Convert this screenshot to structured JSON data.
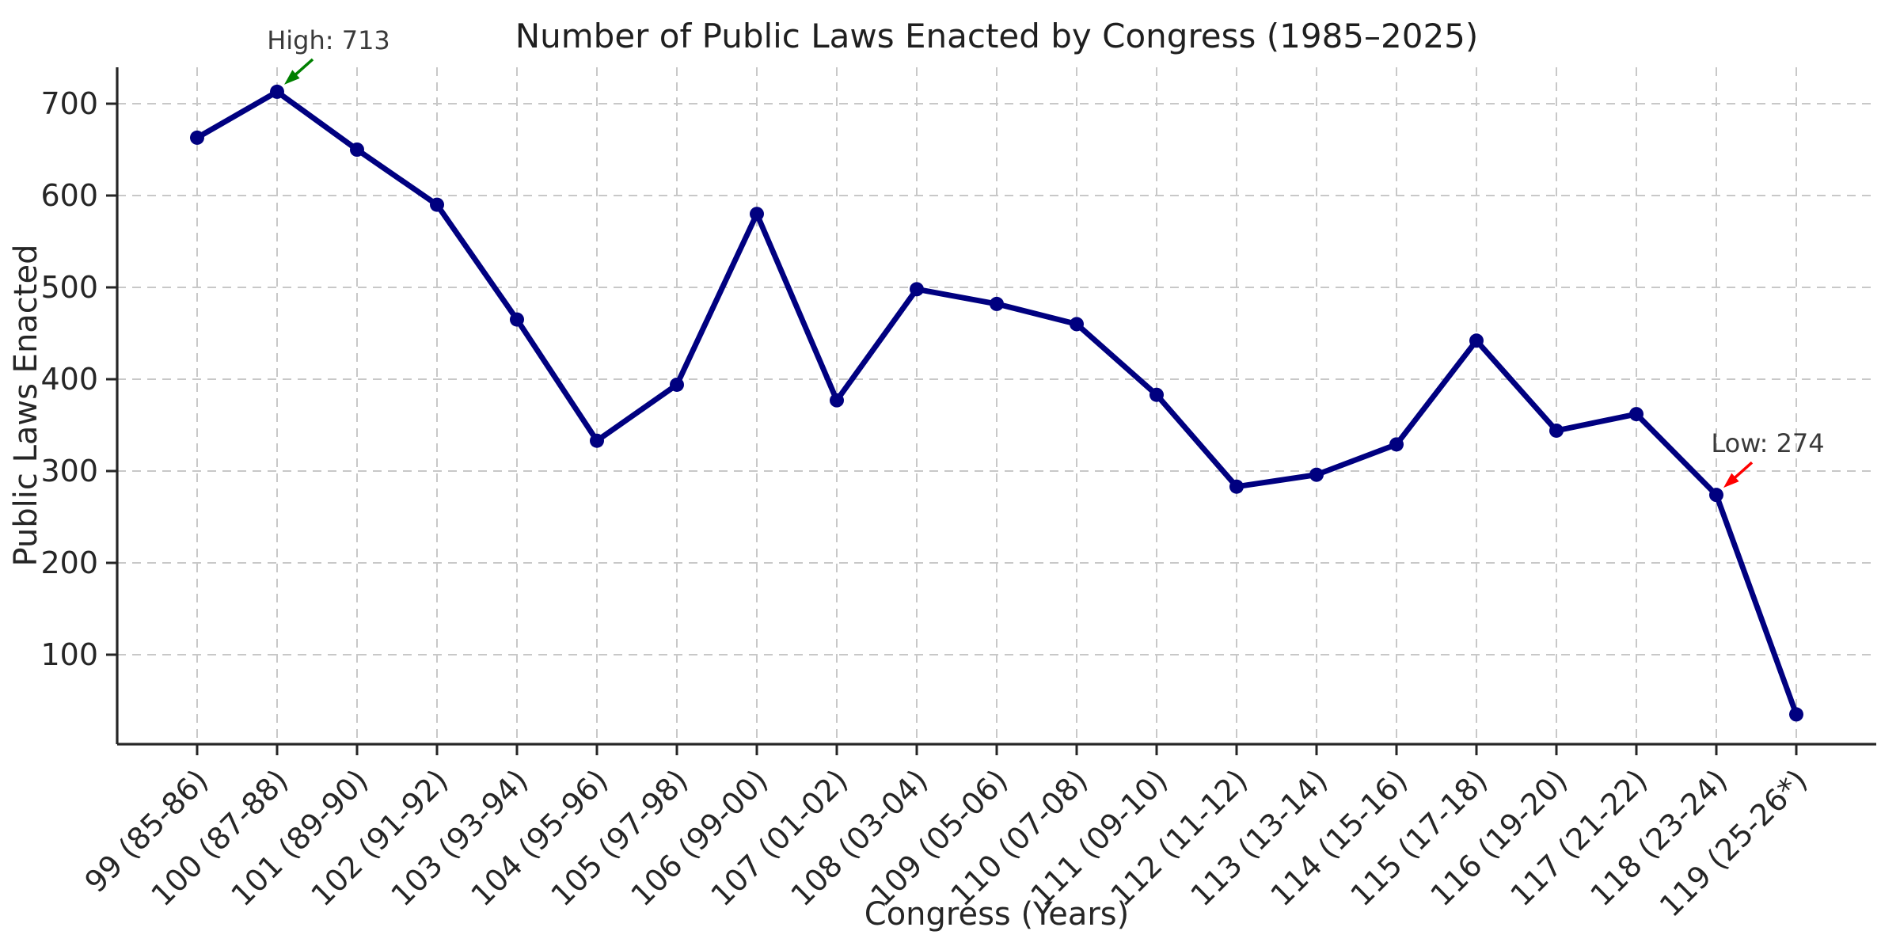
{
  "chart_data": {
    "type": "line",
    "title": "Number of Public Laws Enacted by Congress (1985–2025)",
    "xlabel": "Congress (Years)",
    "ylabel": "Public Laws Enacted",
    "categories": [
      "99 (85-86)",
      "100 (87-88)",
      "101 (89-90)",
      "102 (91-92)",
      "103 (93-94)",
      "104 (95-96)",
      "105 (97-98)",
      "106 (99-00)",
      "107 (01-02)",
      "108 (03-04)",
      "109 (05-06)",
      "110 (07-08)",
      "111 (09-10)",
      "112 (11-12)",
      "113 (13-14)",
      "114 (15-16)",
      "115 (17-18)",
      "116 (19-20)",
      "117 (21-22)",
      "118 (23-24)",
      "119 (25-26*)"
    ],
    "series": [
      {
        "name": "Public Laws Enacted",
        "values": [
          663,
          713,
          650,
          590,
          465,
          333,
          394,
          580,
          377,
          498,
          482,
          460,
          383,
          283,
          296,
          329,
          442,
          344,
          362,
          274,
          35
        ]
      }
    ],
    "yticks": [
      100,
      200,
      300,
      400,
      500,
      600,
      700
    ],
    "ylim": [
      0,
      740
    ],
    "grid": true,
    "legend": null,
    "tick_rotation_deg": 45,
    "annotations": [
      {
        "label": "High: 713",
        "value": 713,
        "index": 1,
        "category": "100 (87-88)",
        "arrow_color": "#008000"
      },
      {
        "label": "Low: 274",
        "value": 274,
        "index": 19,
        "category": "118 (23-24)",
        "arrow_color": "#ff0000"
      }
    ],
    "colors": {
      "line": "#000080",
      "marker": "#000080",
      "grid": "#c8c8c8",
      "text": "#262626",
      "annotation_text": "#3a3a3a",
      "background": "#ffffff",
      "high_arrow": "#008000",
      "low_arrow": "#ff0000"
    }
  }
}
